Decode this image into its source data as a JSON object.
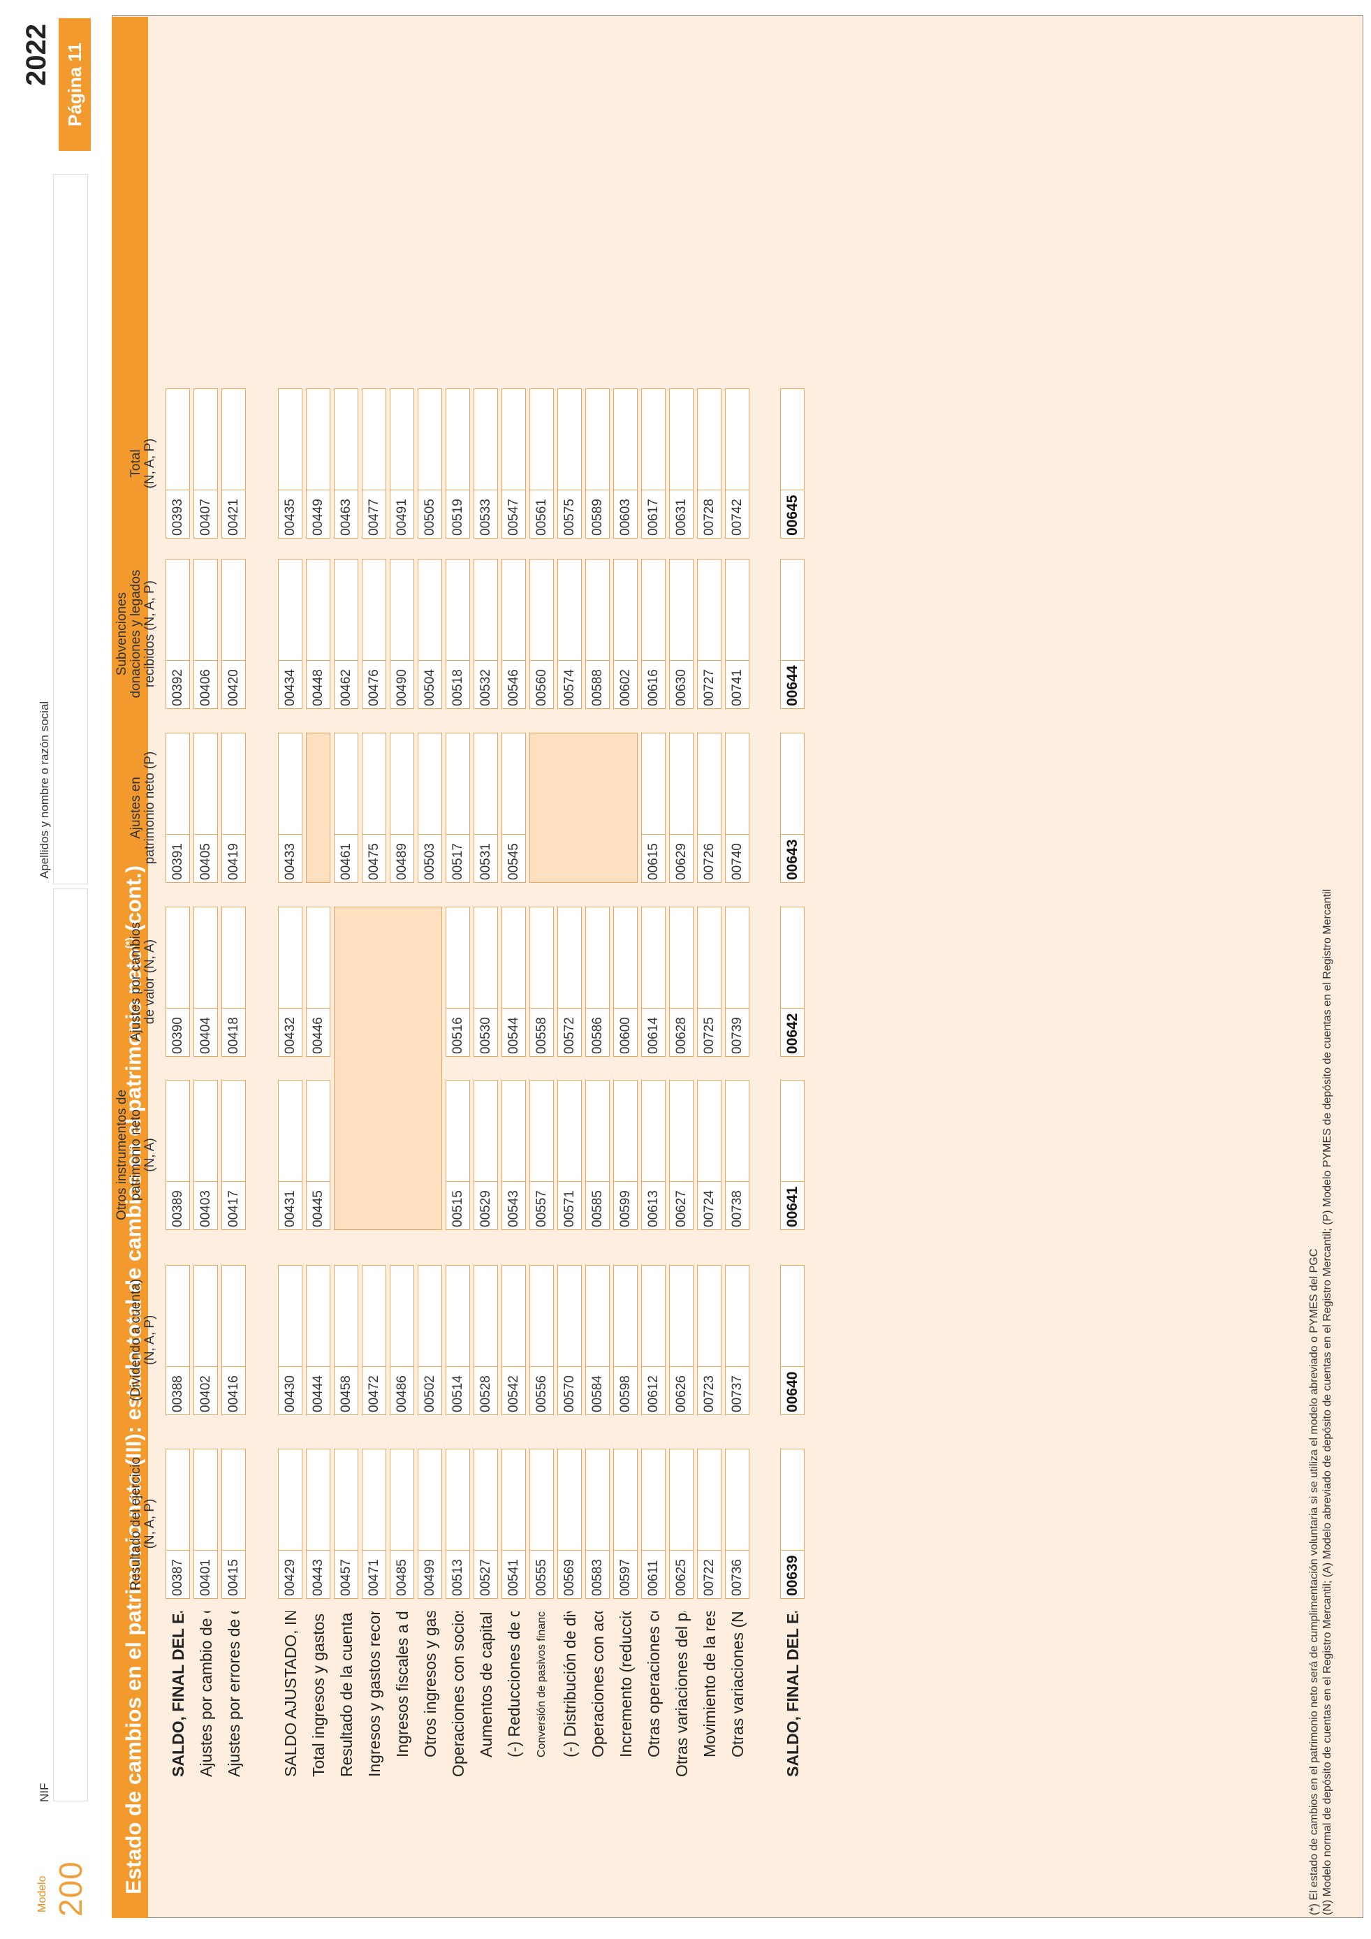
{
  "header": {
    "modelo_label": "Modelo",
    "modelo_number": "200",
    "nif_label": "NIF",
    "nif_value": "",
    "name_label": "Apellidos y nombre o razón social",
    "name_value": "",
    "year": "2022",
    "page": "Página 11"
  },
  "title": {
    "main": "Estado de cambios en el patrimonio neto (III): estado total de cambios en el patrimonio neto",
    "sup": "(*)",
    "suffix": " (cont.)"
  },
  "columns": [
    {
      "lines": [
        "Resultado del ejercicio",
        "(N, A, P)"
      ]
    },
    {
      "lines": [
        "(Dividendo a cuenta)",
        "(N, A, P)"
      ]
    },
    {
      "lines": [
        "Otros instrumentos de",
        "patrimonio neto",
        "(N, A)"
      ]
    },
    {
      "lines": [
        "Ajustes por cambios",
        "de valor (N, A)"
      ]
    },
    {
      "lines": [
        "Ajustes en",
        "patrimonio neto (P)"
      ]
    },
    {
      "lines": [
        "Subvenciones",
        "donaciones y legados",
        "recibidos (N, A, P)"
      ]
    },
    {
      "lines": [
        "Total",
        "(N, A, P)"
      ]
    }
  ],
  "rows": [
    {
      "label": "SALDO, FINAL DEL EJERCICIO ANTERIOR (N, A, P)",
      "codes": [
        "00387",
        "00388",
        "00389",
        "00390",
        "00391",
        "00392",
        "00393"
      ]
    },
    {
      "label": "Ajustes por cambio de criterio de ejercicios anteriores (N, A, P)",
      "codes": [
        "00401",
        "00402",
        "00403",
        "00404",
        "00405",
        "00406",
        "00407"
      ]
    },
    {
      "label": "Ajustes por errores de ejercicios anteriores (N, A, P)",
      "codes": [
        "00415",
        "00416",
        "00417",
        "00418",
        "00419",
        "00420",
        "00421"
      ]
    },
    {
      "label": "SALDO AJUSTADO, INICIO DEL EJERCICIO (N, A, P)",
      "codes": [
        "00429",
        "00430",
        "00431",
        "00432",
        "00433",
        "00434",
        "00435"
      ]
    },
    {
      "label": "Total ingresos y gastos reconocidos (N, A)",
      "codes": [
        "00443",
        "00444",
        "00445",
        "00446",
        "",
        "00448",
        "00449"
      ]
    },
    {
      "label": "Resultado de la cuenta de pérdidas y ganancias (P)",
      "codes": [
        "00457",
        "00458",
        "",
        "",
        "00461",
        "00462",
        "00463"
      ]
    },
    {
      "label": "Ingresos y gastos reconocidos en patrimonio neto (P)",
      "codes": [
        "00471",
        "00472",
        "",
        "",
        "00475",
        "00476",
        "00477"
      ]
    },
    {
      "label": "Ingresos fiscales a distribuir en varios ejercicios (P)",
      "codes": [
        "00485",
        "00486",
        "",
        "",
        "00489",
        "00490",
        "00491"
      ]
    },
    {
      "label": "Otros ingresos y gastos reconocidos en patrimonio neto (P)",
      "codes": [
        "00499",
        "00502",
        "",
        "",
        "00503",
        "00504",
        "00505"
      ]
    },
    {
      "label": "Operaciones con socios o propietarios (N, A, P)",
      "codes": [
        "00513",
        "00514",
        "00515",
        "00516",
        "00517",
        "00518",
        "00519"
      ]
    },
    {
      "label": "Aumentos de capital (N, A, P)",
      "codes": [
        "00527",
        "00528",
        "00529",
        "00530",
        "00531",
        "00532",
        "00533"
      ]
    },
    {
      "label": "(-) Reducciones de capital (N, A, P)",
      "codes": [
        "00541",
        "00542",
        "00543",
        "00544",
        "00545",
        "00546",
        "00547"
      ]
    },
    {
      "label": "Conversión de pasivos financ. en patr. neto (conversión de obligac. condonaciones de deudas) (N)",
      "codes": [
        "00555",
        "00556",
        "00557",
        "00558",
        "",
        "00560",
        "00561"
      ]
    },
    {
      "label": "(-) Distribución de dividendos (N)",
      "codes": [
        "00569",
        "00570",
        "00571",
        "00572",
        "",
        "00574",
        "00575"
      ]
    },
    {
      "label": "Operaciones con acciones o participaciones propias (netas) (N)",
      "codes": [
        "00583",
        "00584",
        "00585",
        "00586",
        "",
        "00588",
        "00589"
      ]
    },
    {
      "label": "Incremento (reducción) de patr. neto resultante de una combinación de negocios (N)",
      "codes": [
        "00597",
        "00598",
        "00599",
        "00600",
        "",
        "00602",
        "00603"
      ]
    },
    {
      "label": "Otras operaciones con socios o propietarios (N, A, P)",
      "codes": [
        "00611",
        "00612",
        "00613",
        "00614",
        "00615",
        "00616",
        "00617"
      ]
    },
    {
      "label": "Otras variaciones del patrimonio neto (N, A, P)",
      "codes": [
        "00625",
        "00626",
        "00627",
        "00628",
        "00629",
        "00630",
        "00631"
      ]
    },
    {
      "label": "Movimiento de la reserva de revalorización (N, A, P)",
      "codes": [
        "00722",
        "00723",
        "00724",
        "00725",
        "00726",
        "00727",
        "00728"
      ]
    },
    {
      "label": "Otras variaciones (N, A, P)",
      "codes": [
        "00736",
        "00737",
        "00738",
        "00739",
        "00740",
        "00741",
        "00742"
      ]
    },
    {
      "label": "SALDO, FINAL DEL EJERCICIO (N, A, P)",
      "codes": [
        "00639",
        "00640",
        "00641",
        "00642",
        "00643",
        "00644",
        "00645"
      ]
    }
  ],
  "footnotes": [
    "(*) El estado de cambios en el patrimonio neto será de cumplimentación voluntaria si se utiliza el modelo abreviado o PYMES del PGC",
    "(N)  Modelo normal de depósito de cuentas en el Registro Mercantil; (A) Modelo abreviado de depósito de cuentas en el Registro Mercantil; (P) Modelo PYMES de depósito de cuentas en el Registro Mercantil"
  ]
}
